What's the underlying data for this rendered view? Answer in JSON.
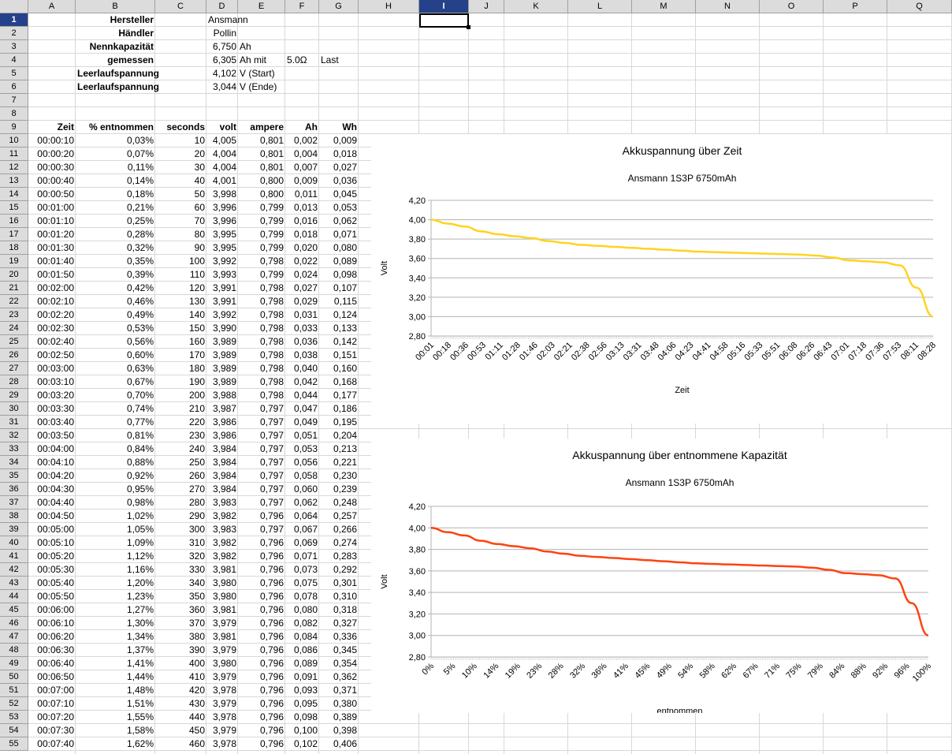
{
  "columns": [
    "A",
    "B",
    "C",
    "D",
    "E",
    "F",
    "G",
    "H",
    "I",
    "J",
    "K",
    "L",
    "M",
    "N",
    "O",
    "P",
    "Q"
  ],
  "selected_column": "I",
  "selected_row": "1",
  "info": [
    {
      "label": "Hersteller",
      "value": "Ansmann",
      "unit": "",
      "extra1": "",
      "extra2": ""
    },
    {
      "label": "Händler",
      "value": "Pollin",
      "unit": "",
      "extra1": "",
      "extra2": ""
    },
    {
      "label": "Nennkapazität",
      "value": "6,750",
      "unit": "Ah",
      "extra1": "",
      "extra2": ""
    },
    {
      "label": "gemessen",
      "value": "6,305",
      "unit": "Ah mit",
      "extra1": "5.0Ω",
      "extra2": "Last"
    },
    {
      "label": "Leerlaufspannung",
      "value": "4,102",
      "unit": "V (Start)",
      "extra1": "",
      "extra2": ""
    },
    {
      "label": "Leerlaufspannung",
      "value": "3,044",
      "unit": "V (Ende)",
      "extra1": "",
      "extra2": ""
    }
  ],
  "table_headers": [
    "Zeit",
    "% entnommen",
    "seconds",
    "volt",
    "ampere",
    "Ah",
    "Wh"
  ],
  "rows": [
    [
      "00:00:10",
      "0,03%",
      "10",
      "4,005",
      "0,801",
      "0,002",
      "0,009"
    ],
    [
      "00:00:20",
      "0,07%",
      "20",
      "4,004",
      "0,801",
      "0,004",
      "0,018"
    ],
    [
      "00:00:30",
      "0,11%",
      "30",
      "4,004",
      "0,801",
      "0,007",
      "0,027"
    ],
    [
      "00:00:40",
      "0,14%",
      "40",
      "4,001",
      "0,800",
      "0,009",
      "0,036"
    ],
    [
      "00:00:50",
      "0,18%",
      "50",
      "3,998",
      "0,800",
      "0,011",
      "0,045"
    ],
    [
      "00:01:00",
      "0,21%",
      "60",
      "3,996",
      "0,799",
      "0,013",
      "0,053"
    ],
    [
      "00:01:10",
      "0,25%",
      "70",
      "3,996",
      "0,799",
      "0,016",
      "0,062"
    ],
    [
      "00:01:20",
      "0,28%",
      "80",
      "3,995",
      "0,799",
      "0,018",
      "0,071"
    ],
    [
      "00:01:30",
      "0,32%",
      "90",
      "3,995",
      "0,799",
      "0,020",
      "0,080"
    ],
    [
      "00:01:40",
      "0,35%",
      "100",
      "3,992",
      "0,798",
      "0,022",
      "0,089"
    ],
    [
      "00:01:50",
      "0,39%",
      "110",
      "3,993",
      "0,799",
      "0,024",
      "0,098"
    ],
    [
      "00:02:00",
      "0,42%",
      "120",
      "3,991",
      "0,798",
      "0,027",
      "0,107"
    ],
    [
      "00:02:10",
      "0,46%",
      "130",
      "3,991",
      "0,798",
      "0,029",
      "0,115"
    ],
    [
      "00:02:20",
      "0,49%",
      "140",
      "3,992",
      "0,798",
      "0,031",
      "0,124"
    ],
    [
      "00:02:30",
      "0,53%",
      "150",
      "3,990",
      "0,798",
      "0,033",
      "0,133"
    ],
    [
      "00:02:40",
      "0,56%",
      "160",
      "3,989",
      "0,798",
      "0,036",
      "0,142"
    ],
    [
      "00:02:50",
      "0,60%",
      "170",
      "3,989",
      "0,798",
      "0,038",
      "0,151"
    ],
    [
      "00:03:00",
      "0,63%",
      "180",
      "3,989",
      "0,798",
      "0,040",
      "0,160"
    ],
    [
      "00:03:10",
      "0,67%",
      "190",
      "3,989",
      "0,798",
      "0,042",
      "0,168"
    ],
    [
      "00:03:20",
      "0,70%",
      "200",
      "3,988",
      "0,798",
      "0,044",
      "0,177"
    ],
    [
      "00:03:30",
      "0,74%",
      "210",
      "3,987",
      "0,797",
      "0,047",
      "0,186"
    ],
    [
      "00:03:40",
      "0,77%",
      "220",
      "3,986",
      "0,797",
      "0,049",
      "0,195"
    ],
    [
      "00:03:50",
      "0,81%",
      "230",
      "3,986",
      "0,797",
      "0,051",
      "0,204"
    ],
    [
      "00:04:00",
      "0,84%",
      "240",
      "3,984",
      "0,797",
      "0,053",
      "0,213"
    ],
    [
      "00:04:10",
      "0,88%",
      "250",
      "3,984",
      "0,797",
      "0,056",
      "0,221"
    ],
    [
      "00:04:20",
      "0,92%",
      "260",
      "3,984",
      "0,797",
      "0,058",
      "0,230"
    ],
    [
      "00:04:30",
      "0,95%",
      "270",
      "3,984",
      "0,797",
      "0,060",
      "0,239"
    ],
    [
      "00:04:40",
      "0,98%",
      "280",
      "3,983",
      "0,797",
      "0,062",
      "0,248"
    ],
    [
      "00:04:50",
      "1,02%",
      "290",
      "3,982",
      "0,796",
      "0,064",
      "0,257"
    ],
    [
      "00:05:00",
      "1,05%",
      "300",
      "3,983",
      "0,797",
      "0,067",
      "0,266"
    ],
    [
      "00:05:10",
      "1,09%",
      "310",
      "3,982",
      "0,796",
      "0,069",
      "0,274"
    ],
    [
      "00:05:20",
      "1,12%",
      "320",
      "3,982",
      "0,796",
      "0,071",
      "0,283"
    ],
    [
      "00:05:30",
      "1,16%",
      "330",
      "3,981",
      "0,796",
      "0,073",
      "0,292"
    ],
    [
      "00:05:40",
      "1,20%",
      "340",
      "3,980",
      "0,796",
      "0,075",
      "0,301"
    ],
    [
      "00:05:50",
      "1,23%",
      "350",
      "3,980",
      "0,796",
      "0,078",
      "0,310"
    ],
    [
      "00:06:00",
      "1,27%",
      "360",
      "3,981",
      "0,796",
      "0,080",
      "0,318"
    ],
    [
      "00:06:10",
      "1,30%",
      "370",
      "3,979",
      "0,796",
      "0,082",
      "0,327"
    ],
    [
      "00:06:20",
      "1,34%",
      "380",
      "3,981",
      "0,796",
      "0,084",
      "0,336"
    ],
    [
      "00:06:30",
      "1,37%",
      "390",
      "3,979",
      "0,796",
      "0,086",
      "0,345"
    ],
    [
      "00:06:40",
      "1,41%",
      "400",
      "3,980",
      "0,796",
      "0,089",
      "0,354"
    ],
    [
      "00:06:50",
      "1,44%",
      "410",
      "3,979",
      "0,796",
      "0,091",
      "0,362"
    ],
    [
      "00:07:00",
      "1,48%",
      "420",
      "3,978",
      "0,796",
      "0,093",
      "0,371"
    ],
    [
      "00:07:10",
      "1,51%",
      "430",
      "3,979",
      "0,796",
      "0,095",
      "0,380"
    ],
    [
      "00:07:20",
      "1,55%",
      "440",
      "3,978",
      "0,796",
      "0,098",
      "0,389"
    ],
    [
      "00:07:30",
      "1,58%",
      "450",
      "3,979",
      "0,796",
      "0,100",
      "0,398"
    ],
    [
      "00:07:40",
      "1,62%",
      "460",
      "3,978",
      "0,796",
      "0,102",
      "0,406"
    ]
  ],
  "chart_data": [
    {
      "type": "line",
      "title": "Akkuspannung über Zeit",
      "subtitle": "Ansmann 1S3P 6750mAh",
      "xlabel": "Zeit",
      "ylabel": "Volt",
      "ylim": [
        2.8,
        4.2
      ],
      "yticks": [
        "2,80",
        "3,00",
        "3,20",
        "3,40",
        "3,60",
        "3,80",
        "4,00",
        "4,20"
      ],
      "xticks": [
        "00:01",
        "00:18",
        "00:36",
        "00:53",
        "01:11",
        "01:28",
        "01:46",
        "02:03",
        "02:21",
        "02:38",
        "02:56",
        "03:13",
        "03:31",
        "03:48",
        "04:06",
        "04:23",
        "04:41",
        "04:58",
        "05:16",
        "05:33",
        "05:51",
        "06:08",
        "06:26",
        "06:43",
        "07:01",
        "07:18",
        "07:36",
        "07:53",
        "08:11",
        "08:28"
      ],
      "color": "#ffd320",
      "grid": true,
      "series": [
        {
          "values": [
            4.0,
            3.96,
            3.93,
            3.88,
            3.85,
            3.83,
            3.81,
            3.78,
            3.76,
            3.74,
            3.73,
            3.72,
            3.71,
            3.7,
            3.69,
            3.68,
            3.67,
            3.665,
            3.66,
            3.655,
            3.65,
            3.645,
            3.64,
            3.63,
            3.61,
            3.58,
            3.57,
            3.56,
            3.53,
            3.3,
            3.0
          ]
        }
      ]
    },
    {
      "type": "line",
      "title": "Akkuspannung über entnommene Kapazität",
      "subtitle": "Ansmann 1S3P 6750mAh",
      "xlabel": "entnommen",
      "ylabel": "Volt",
      "ylim": [
        2.8,
        4.2
      ],
      "yticks": [
        "2,80",
        "3,00",
        "3,20",
        "3,40",
        "3,60",
        "3,80",
        "4,00",
        "4,20"
      ],
      "xticks": [
        "0%",
        "5%",
        "10%",
        "14%",
        "19%",
        "23%",
        "28%",
        "32%",
        "36%",
        "41%",
        "45%",
        "49%",
        "54%",
        "58%",
        "62%",
        "67%",
        "71%",
        "75%",
        "79%",
        "84%",
        "88%",
        "92%",
        "96%",
        "100%"
      ],
      "color": "#ff420e",
      "grid": true,
      "series": [
        {
          "values": [
            4.0,
            3.96,
            3.93,
            3.88,
            3.85,
            3.83,
            3.81,
            3.78,
            3.76,
            3.74,
            3.73,
            3.72,
            3.71,
            3.7,
            3.69,
            3.68,
            3.67,
            3.665,
            3.66,
            3.655,
            3.65,
            3.645,
            3.64,
            3.63,
            3.61,
            3.58,
            3.57,
            3.56,
            3.53,
            3.3,
            3.0
          ]
        }
      ]
    }
  ]
}
